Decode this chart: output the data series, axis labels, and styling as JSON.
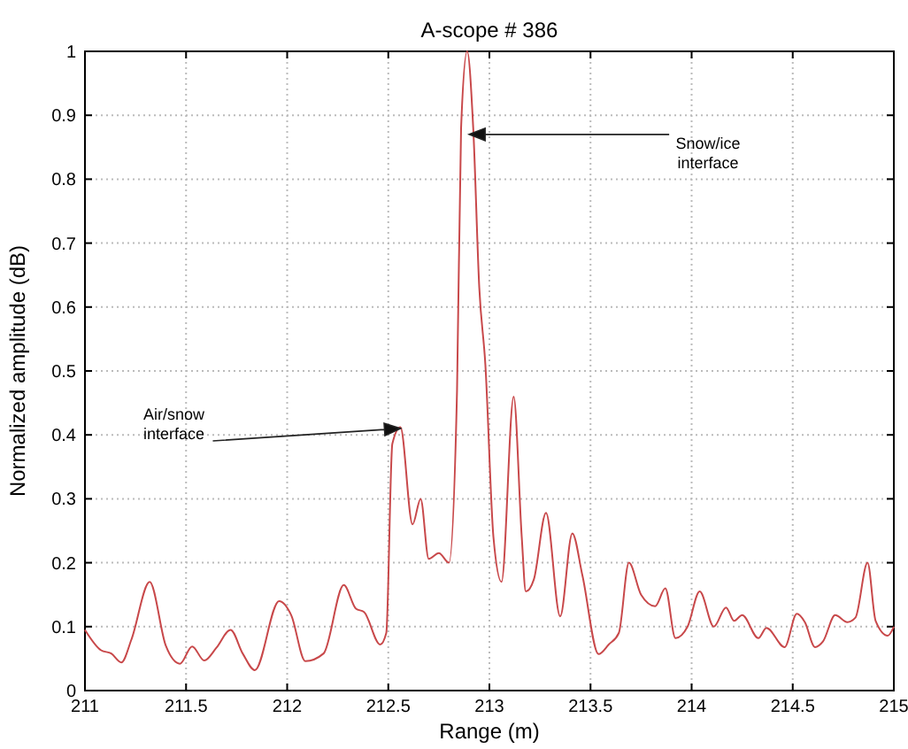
{
  "chart_data": {
    "type": "line",
    "title": "A-scope # 386",
    "xlabel": "Range (m)",
    "ylabel": "Normalized amplitude (dB)",
    "xlim": [
      211,
      215
    ],
    "xticks": [
      211,
      211.5,
      212,
      212.5,
      213,
      213.5,
      214,
      214.5,
      215
    ],
    "ylim": [
      0,
      1
    ],
    "yticks": [
      0,
      0.1,
      0.2,
      0.3,
      0.4,
      0.5,
      0.6,
      0.7,
      0.8,
      0.9,
      1
    ],
    "grid": true,
    "line_style": "solid",
    "annotations": [
      {
        "text": "Air/snow interface",
        "x": 212.56,
        "y": 0.41
      },
      {
        "text": "Snow/ice interface",
        "x": 212.9,
        "y": 0.87
      }
    ],
    "series": [
      {
        "color": "#c8484a",
        "x": [
          211,
          211.08,
          211.13,
          211.18,
          211.23,
          211.32,
          211.4,
          211.47,
          211.53,
          211.59,
          211.65,
          211.72,
          211.78,
          211.84,
          211.96,
          212.02,
          212.09,
          212.18,
          212.28,
          212.34,
          212.38,
          212.46,
          212.49,
          212.52,
          212.56,
          212.62,
          212.66,
          212.7,
          212.75,
          212.8,
          212.84,
          212.86,
          212.89,
          212.92,
          212.95,
          212.98,
          213.02,
          213.06,
          213.12,
          213.16,
          213.18,
          213.22,
          213.28,
          213.35,
          213.41,
          213.46,
          213.54,
          213.59,
          213.64,
          213.69,
          213.75,
          213.82,
          213.87,
          213.92,
          213.98,
          214.04,
          214.11,
          214.17,
          214.21,
          214.25,
          214.33,
          214.37,
          214.46,
          214.52,
          214.56,
          214.61,
          214.65,
          214.71,
          214.77,
          214.81,
          214.87,
          214.91,
          214.97,
          215
        ],
        "values": [
          0.095,
          0.063,
          0.058,
          0.044,
          0.08,
          0.17,
          0.07,
          0.042,
          0.069,
          0.047,
          0.067,
          0.095,
          0.058,
          0.032,
          0.14,
          0.118,
          0.046,
          0.058,
          0.165,
          0.128,
          0.123,
          0.072,
          0.09,
          0.386,
          0.412,
          0.26,
          0.3,
          0.206,
          0.215,
          0.2,
          0.47,
          0.88,
          1,
          0.88,
          0.63,
          0.51,
          0.24,
          0.17,
          0.46,
          0.24,
          0.155,
          0.174,
          0.278,
          0.116,
          0.246,
          0.18,
          0.057,
          0.072,
          0.09,
          0.2,
          0.15,
          0.132,
          0.16,
          0.082,
          0.1,
          0.155,
          0.1,
          0.13,
          0.109,
          0.118,
          0.082,
          0.098,
          0.068,
          0.12,
          0.107,
          0.068,
          0.077,
          0.118,
          0.107,
          0.114,
          0.2,
          0.109,
          0.086,
          0.1
        ]
      }
    ]
  }
}
